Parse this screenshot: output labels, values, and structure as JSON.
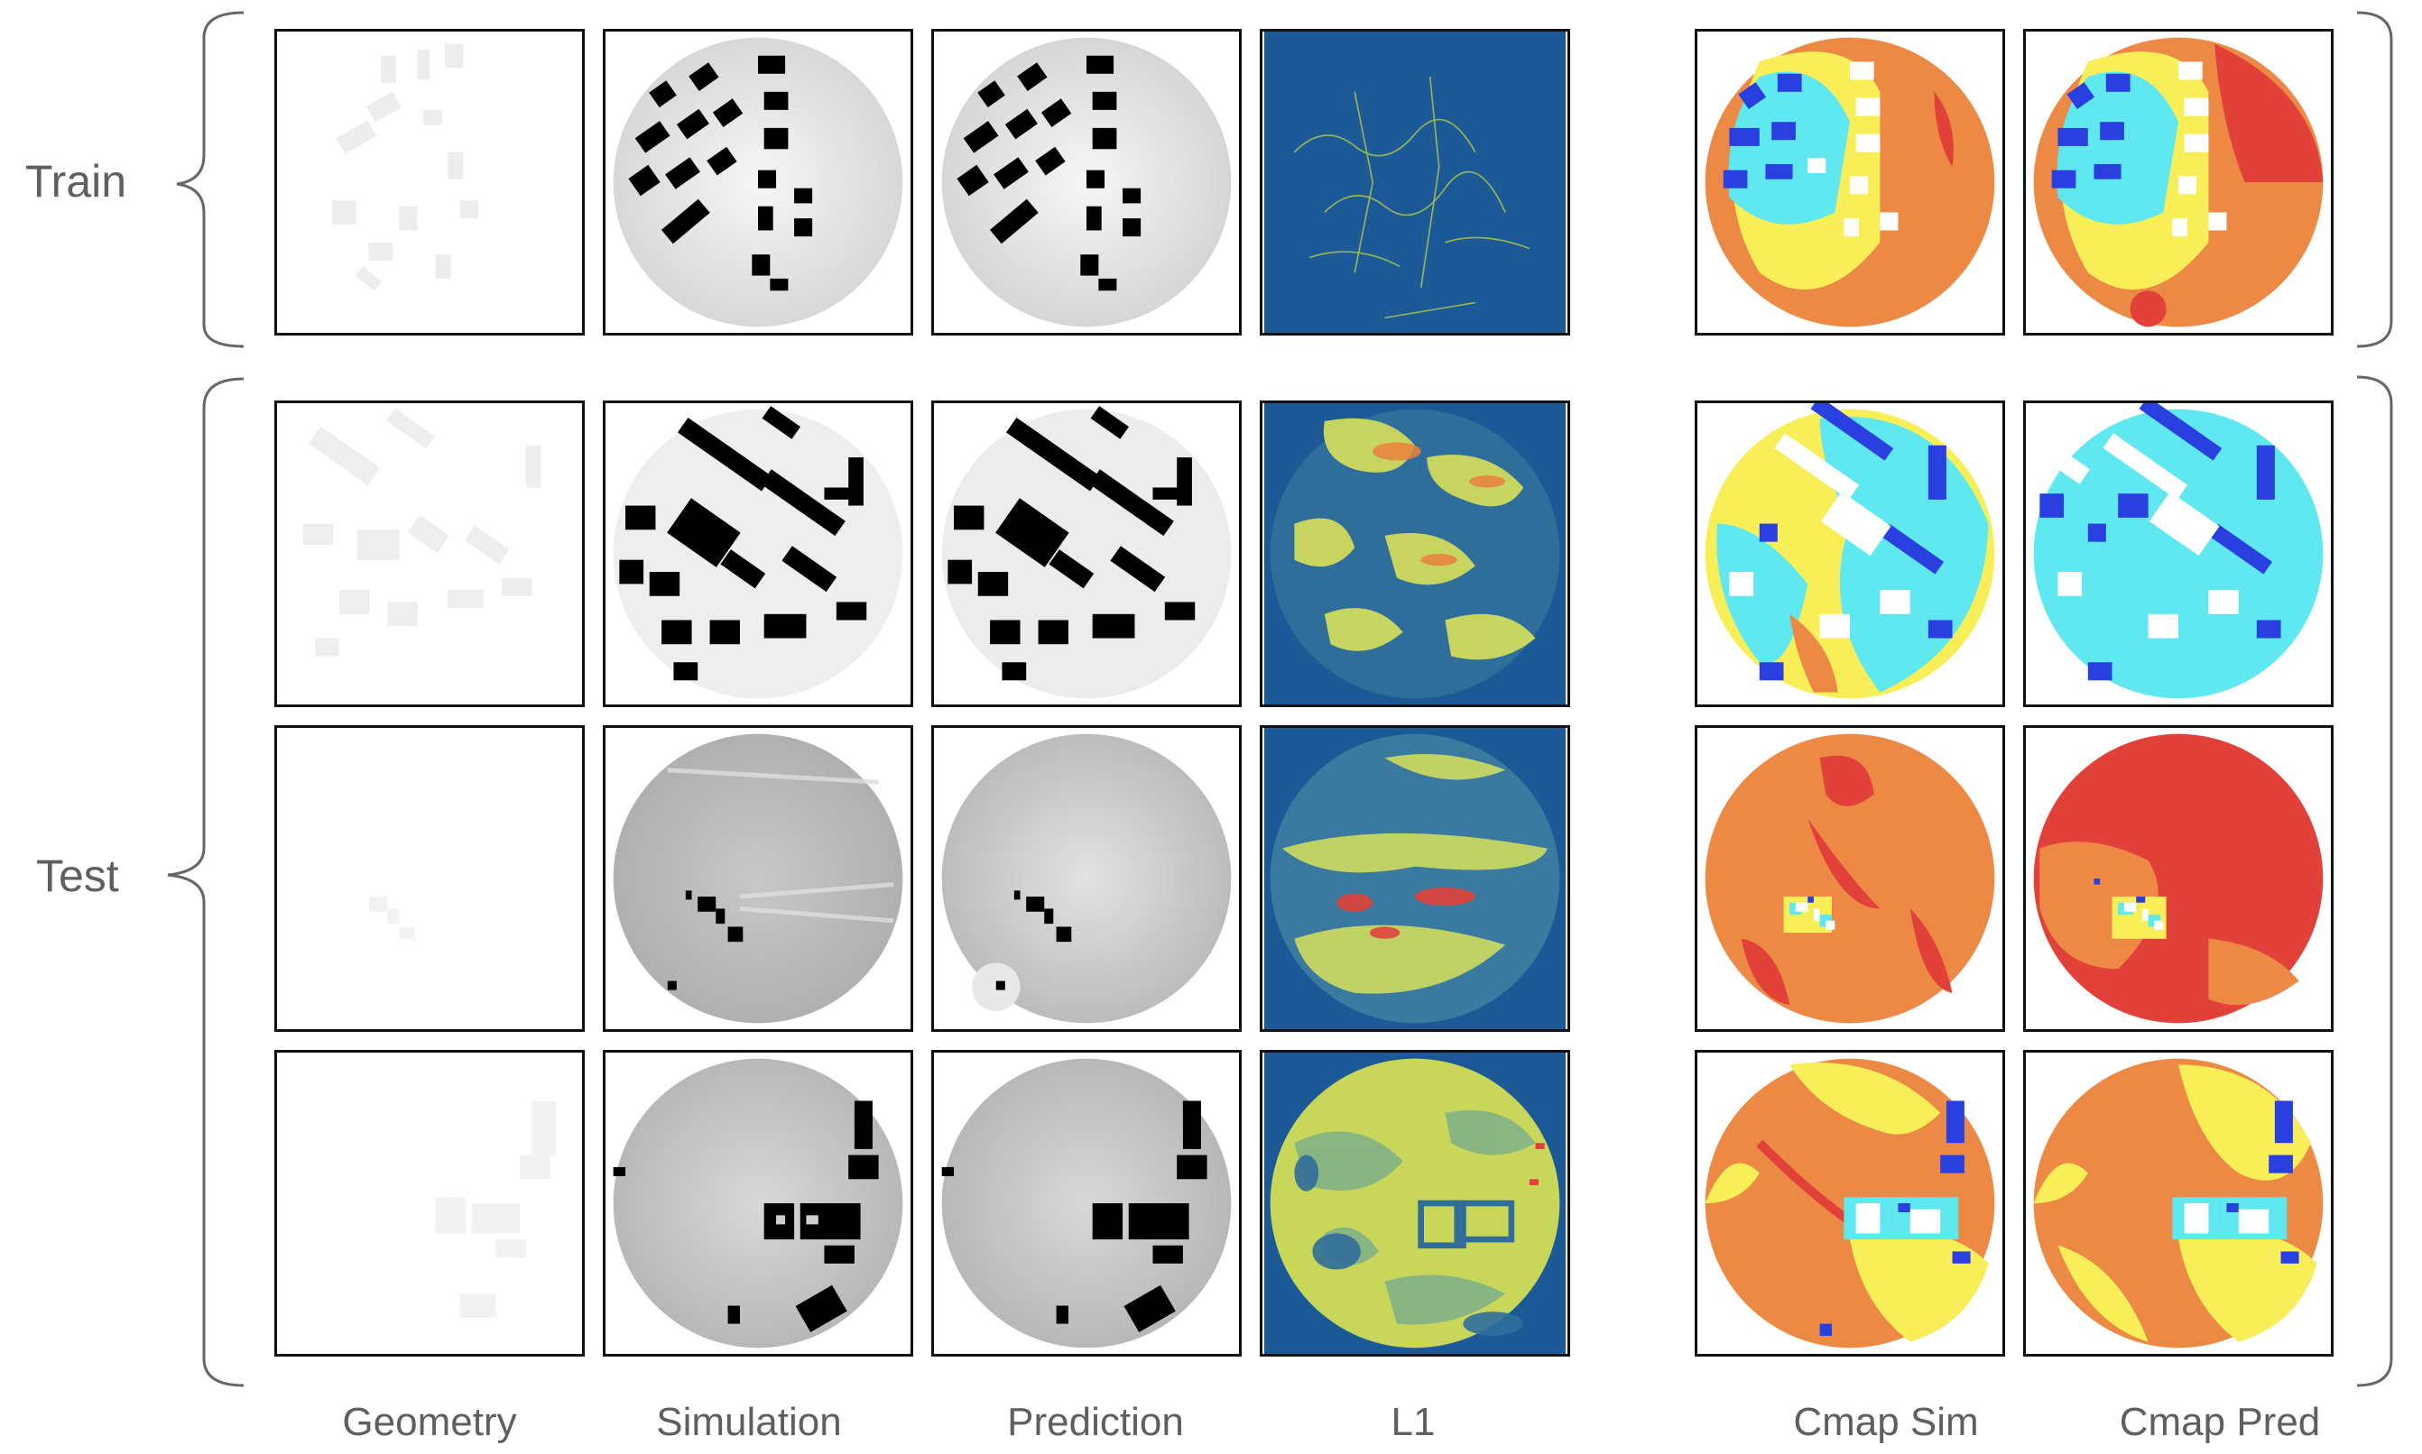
{
  "figure": {
    "row_labels": {
      "train": "Train",
      "test": "Test"
    },
    "column_labels": {
      "geometry": "Geometry",
      "simulation": "Simulation",
      "prediction": "Prediction",
      "l1": "L1",
      "cmap_sim": "Cmap Sim",
      "cmap_pred": "Cmap Pred"
    },
    "colors": {
      "label_text": "#5f5f5f",
      "panel_border": "#111111",
      "l1_background": "#1b5a96",
      "cmap_orange": "#ec8a45",
      "cmap_red": "#e2413a",
      "cmap_yellow": "#f8ee58",
      "cmap_cyan": "#5fe8f0",
      "cmap_blue": "#2a3fe0",
      "building_black": "#000000"
    }
  }
}
